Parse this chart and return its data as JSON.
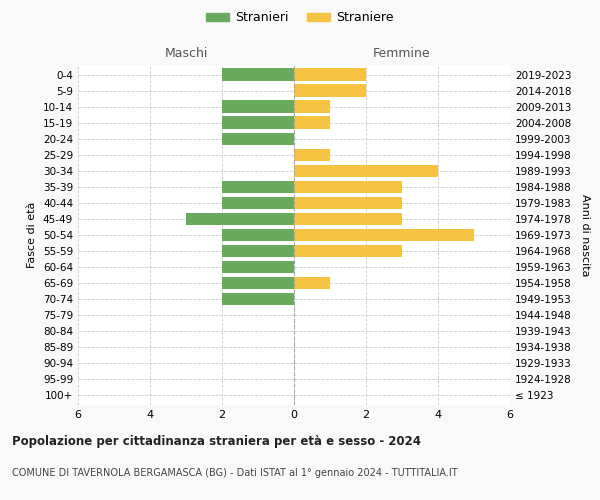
{
  "age_groups": [
    "100+",
    "95-99",
    "90-94",
    "85-89",
    "80-84",
    "75-79",
    "70-74",
    "65-69",
    "60-64",
    "55-59",
    "50-54",
    "45-49",
    "40-44",
    "35-39",
    "30-34",
    "25-29",
    "20-24",
    "15-19",
    "10-14",
    "5-9",
    "0-4"
  ],
  "birth_years": [
    "≤ 1923",
    "1924-1928",
    "1929-1933",
    "1934-1938",
    "1939-1943",
    "1944-1948",
    "1949-1953",
    "1954-1958",
    "1959-1963",
    "1964-1968",
    "1969-1973",
    "1974-1978",
    "1979-1983",
    "1984-1988",
    "1989-1993",
    "1994-1998",
    "1999-2003",
    "2004-2008",
    "2009-2013",
    "2014-2018",
    "2019-2023"
  ],
  "maschi": [
    0,
    0,
    0,
    0,
    0,
    0,
    2,
    2,
    2,
    2,
    2,
    3,
    2,
    2,
    0,
    0,
    2,
    2,
    2,
    0,
    2
  ],
  "femmine": [
    0,
    0,
    0,
    0,
    0,
    0,
    0,
    1,
    0,
    3,
    5,
    3,
    3,
    3,
    4,
    1,
    0,
    1,
    1,
    2,
    2
  ],
  "color_maschi": "#6aaa5e",
  "color_femmine": "#f5c242",
  "xlim": 6,
  "title": "Popolazione per cittadinanza straniera per età e sesso - 2024",
  "subtitle": "COMUNE DI TAVERNOLA BERGAMASCA (BG) - Dati ISTAT al 1° gennaio 2024 - TUTTITALIA.IT",
  "legend_maschi": "Stranieri",
  "legend_femmine": "Straniere",
  "label_left": "Maschi",
  "label_right": "Femmine",
  "ylabel_left": "Fasce di età",
  "ylabel_right": "Anni di nascita",
  "bg_color": "#f9f9f9",
  "plot_bg_color": "#ffffff",
  "grid_color": "#cccccc"
}
